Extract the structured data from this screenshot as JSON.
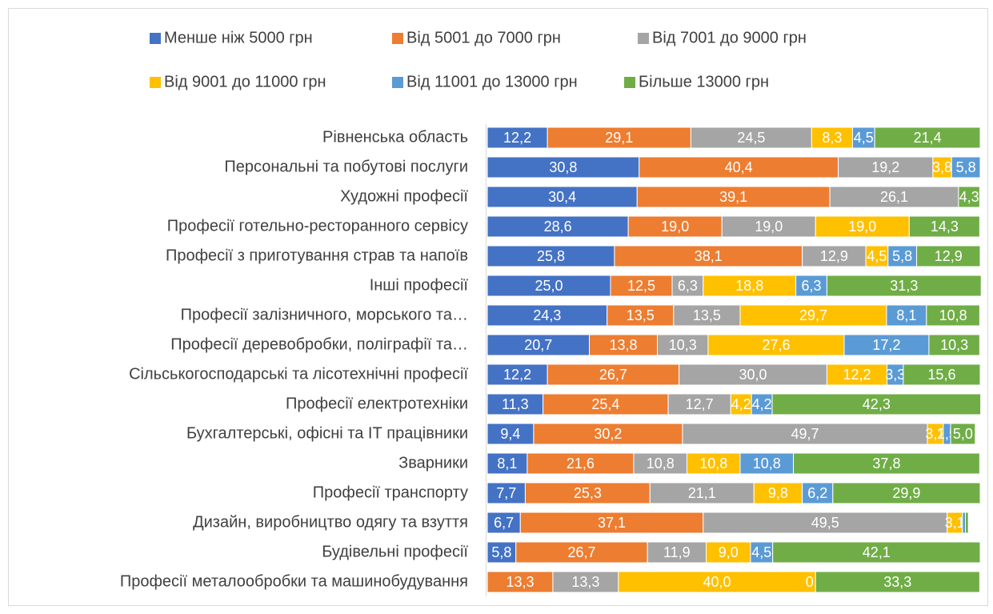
{
  "chart_data": {
    "type": "stacked-bar-horizontal",
    "categories": [
      "Рівненська область",
      "Персональні та побутові послуги",
      "Художні професії",
      "Професії готельно-ресторанного сервісу",
      "Професії з приготування страв та напоїв",
      "Інші професії",
      "Професії залізничного, морського та…",
      "Професії деревобробки, поліграфії та…",
      "Сільськогосподарські та лісотехнічні професії",
      "Професії електротехніки",
      "Бухгалтерські, офісні та ІТ працівники",
      "Зварники",
      "Професії транспорту",
      "Дизайн, виробництво одягу та взуття",
      "Будівельні професії",
      "Професії металообробки та машинобудування"
    ],
    "xlim": [
      0,
      100
    ],
    "legend": "top",
    "series": [
      {
        "name": "Менше ніж 5000 грн",
        "color": "#4472c4",
        "values": [
          12.2,
          30.8,
          30.4,
          28.6,
          25.8,
          25.0,
          24.3,
          20.7,
          12.2,
          11.3,
          9.4,
          8.1,
          7.7,
          6.7,
          5.8,
          null
        ],
        "value_labels": [
          "12,2",
          "30,8",
          "30,4",
          "28,6",
          "25,8",
          "25,0",
          "24,3",
          "20,7",
          "12,2",
          "11,3",
          "9,4",
          "8,1",
          "7,7",
          "6,7",
          "5,8",
          null
        ]
      },
      {
        "name": "Від 5001 до 7000 грн",
        "color": "#ed7d31",
        "values": [
          29.1,
          40.4,
          39.1,
          19.0,
          38.1,
          12.5,
          13.5,
          13.8,
          26.7,
          25.4,
          30.2,
          21.6,
          25.3,
          37.1,
          26.7,
          13.3
        ],
        "value_labels": [
          "29,1",
          "40,4",
          "39,1",
          "19,0",
          "38,1",
          "12,5",
          "13,5",
          "13,8",
          "26,7",
          "25,4",
          "30,2",
          "21,6",
          "25,3",
          "37,1",
          "26,7",
          "13,3"
        ]
      },
      {
        "name": "Від 7001 до 9000 грн",
        "color": "#a5a5a5",
        "values": [
          24.5,
          19.2,
          26.1,
          19.0,
          12.9,
          6.3,
          13.5,
          10.3,
          30.0,
          12.7,
          49.7,
          10.8,
          21.1,
          49.5,
          11.9,
          13.3
        ],
        "value_labels": [
          "24,5",
          "19,2",
          "26,1",
          "19,0",
          "12,9",
          "6,3",
          "13,5",
          "10,3",
          "30,0",
          "12,7",
          "49,7",
          "10,8",
          "21,1",
          "49,5",
          "11,9",
          "13,3"
        ]
      },
      {
        "name": "Від 9001 до 11000 грн",
        "color": "#ffc000",
        "values": [
          8.3,
          3.8,
          null,
          19.0,
          4.5,
          18.8,
          29.7,
          27.6,
          12.2,
          4.2,
          3.2,
          10.8,
          9.8,
          3.1,
          9.0,
          40.0
        ],
        "value_labels": [
          "8,3",
          "3,8",
          null,
          "19,0",
          "4,5",
          "18,8",
          "29,7",
          "27,6",
          "12,2",
          "4,2",
          "3,2",
          "10,8",
          "9,8",
          "3,1",
          "9,0",
          "40,0"
        ]
      },
      {
        "name": "Від 11001 до 13000 грн",
        "color": "#5b9bd5",
        "values": [
          4.5,
          5.8,
          null,
          null,
          5.8,
          6.3,
          8.1,
          17.2,
          3.3,
          4.2,
          1.5,
          10.8,
          6.2,
          0.6,
          4.5,
          0.0
        ],
        "value_labels": [
          "4,5",
          "5,8",
          null,
          null,
          "5,8",
          "6,3",
          "8,1",
          "17,2",
          "3,3",
          "4,2",
          "1,5",
          "10,8",
          "6,2",
          null,
          "4,5",
          "0,0"
        ]
      },
      {
        "name": "Більше 13000 грн",
        "color": "#70ad47",
        "values": [
          21.4,
          null,
          4.3,
          14.3,
          12.9,
          31.3,
          10.8,
          10.3,
          15.6,
          42.3,
          5.0,
          37.8,
          29.9,
          0.6,
          42.1,
          33.3
        ],
        "value_labels": [
          "21,4",
          null,
          "4,3",
          "14,3",
          "12,9",
          "31,3",
          "10,8",
          "10,3",
          "15,6",
          "42,3",
          "5,0",
          "37,8",
          "29,9",
          null,
          "42,1",
          "33,3"
        ]
      }
    ]
  }
}
